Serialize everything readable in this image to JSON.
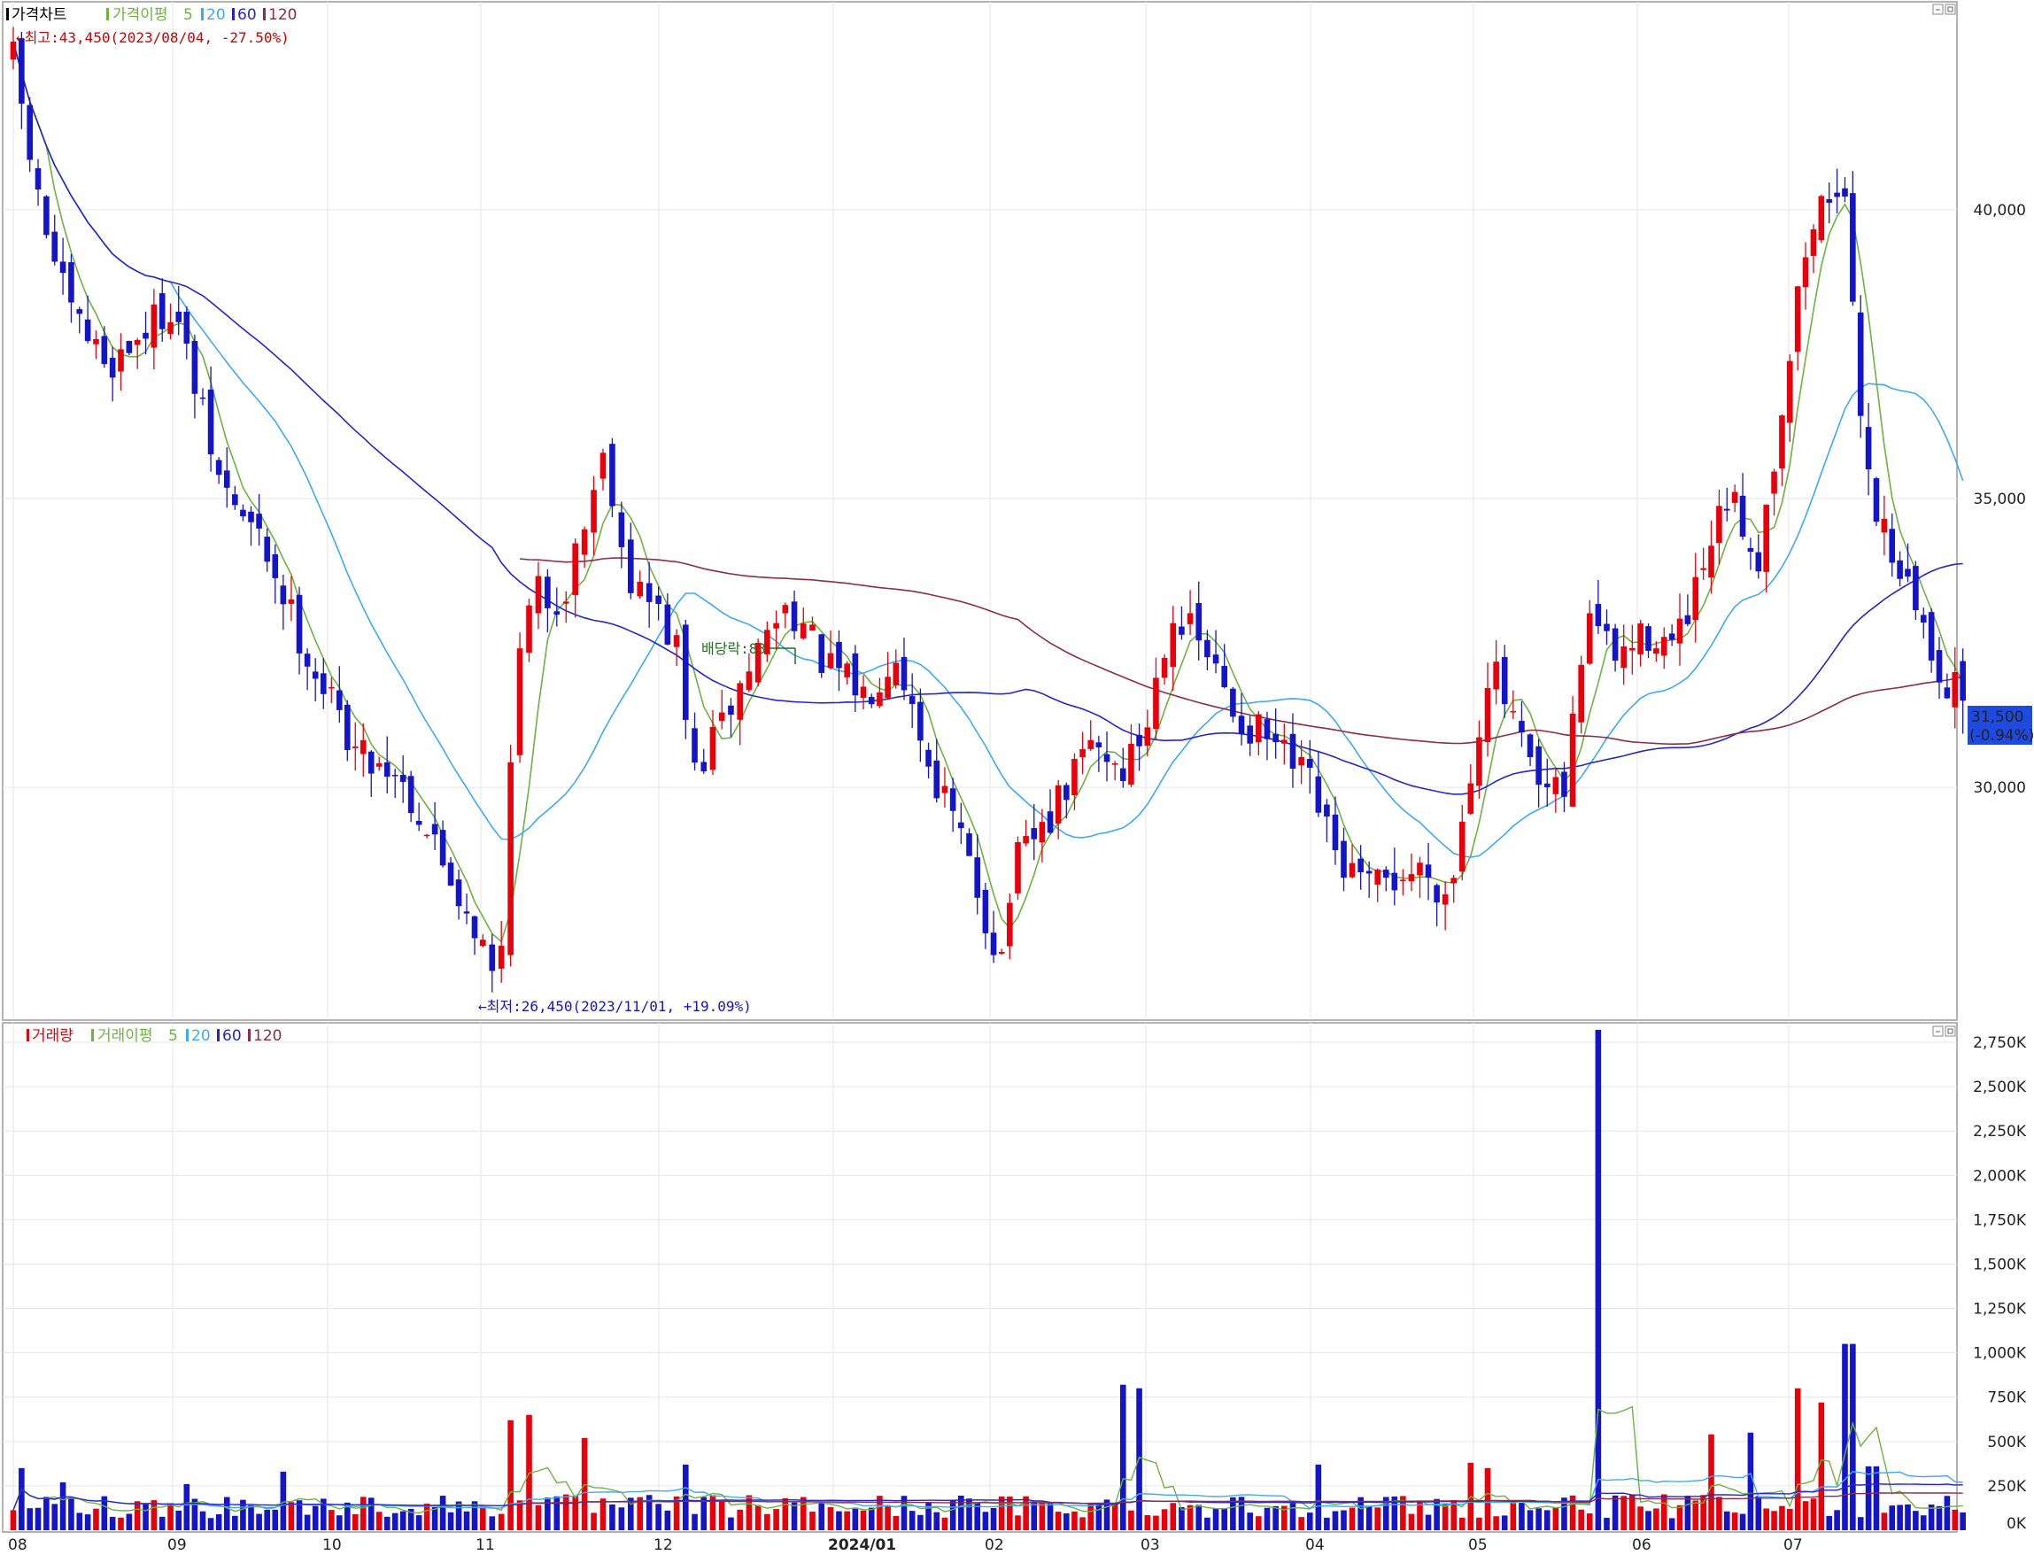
{
  "colors": {
    "up": "#e8000b",
    "down": "#1414c8",
    "ma5": "#6db33f",
    "ma20": "#3fa9f5",
    "ma60": "#2626c8",
    "ma120": "#8b2d45",
    "grid": "#e6e6e6",
    "frame": "#9a9a9a",
    "last_price_bg": "#1f4ae0",
    "annot_high": "#d00000",
    "annot_low": "#1414c8",
    "dividend": "#207020"
  },
  "price_legend": {
    "title": "가격차트",
    "avg_label": "가격이평",
    "periods": [
      "5",
      "20",
      "60",
      "120"
    ]
  },
  "volume_legend": {
    "title": "거래량",
    "avg_label": "거래이평",
    "periods": [
      "5",
      "20",
      "60",
      "120"
    ]
  },
  "annotations": {
    "high": "←최고:43,450(2023/08/04, -27.50%)",
    "low": "←최저:26,450(2023/11/01, +19.09%)",
    "dividend": "배당락:83"
  },
  "last_price": {
    "price": "31,500",
    "change": "(-0.94%)"
  },
  "x_axis_labels": [
    "08",
    "09",
    "10",
    "11",
    "12",
    "2024/01",
    "02",
    "03",
    "04",
    "05",
    "06",
    "07"
  ],
  "price_y_ticks": [
    "40,000",
    "35,000",
    "30,000"
  ],
  "volume_y_ticks": [
    "2,750K",
    "2,500K",
    "2,250K",
    "2,000K",
    "1,750K",
    "1,500K",
    "1,250K",
    "1,000K",
    "750K",
    "500K",
    "250K",
    "0K"
  ],
  "chart_data": [
    {
      "type": "candlestick",
      "title": "가격차트",
      "period": "2023/08 – 2024/07 (daily)",
      "x_categories": [
        "08",
        "09",
        "10",
        "11",
        "12",
        "2024/01",
        "02",
        "03",
        "04",
        "05",
        "06",
        "07"
      ],
      "ylim": [
        26000,
        43600
      ],
      "y_ticks": [
        30000,
        35000,
        40000
      ],
      "grid": true,
      "high": {
        "value": 43450,
        "date": "2023/08/04",
        "pct": -27.5
      },
      "low": {
        "value": 26450,
        "date": "2023/11/01",
        "pct": 19.09
      },
      "last_close": 31500,
      "last_change_pct": -0.94,
      "close_waypoints_by_month_fraction": [
        [
          0.0,
          42600
        ],
        [
          0.15,
          40200
        ],
        [
          0.35,
          38200
        ],
        [
          0.6,
          37300
        ],
        [
          1.0,
          38400
        ],
        [
          1.3,
          35300
        ],
        [
          1.6,
          34100
        ],
        [
          1.9,
          32100
        ],
        [
          2.2,
          30600
        ],
        [
          2.45,
          30300
        ],
        [
          2.7,
          29000
        ],
        [
          3.0,
          27400
        ],
        [
          3.05,
          26600
        ],
        [
          3.12,
          27300
        ],
        [
          3.18,
          31700
        ],
        [
          3.3,
          33400
        ],
        [
          3.45,
          33200
        ],
        [
          3.7,
          35900
        ],
        [
          3.82,
          33700
        ],
        [
          4.0,
          33000
        ],
        [
          4.1,
          32400
        ],
        [
          4.2,
          30200
        ],
        [
          4.35,
          31000
        ],
        [
          4.6,
          32600
        ],
        [
          4.75,
          33200
        ],
        [
          4.95,
          32100
        ],
        [
          5.2,
          31600
        ],
        [
          5.4,
          32400
        ],
        [
          5.6,
          30500
        ],
        [
          5.8,
          29200
        ],
        [
          6.0,
          27500
        ],
        [
          6.07,
          27000
        ],
        [
          6.15,
          28600
        ],
        [
          6.4,
          29500
        ],
        [
          6.65,
          30800
        ],
        [
          6.85,
          30300
        ],
        [
          7.0,
          31000
        ],
        [
          7.15,
          33100
        ],
        [
          7.35,
          32400
        ],
        [
          7.55,
          31200
        ],
        [
          7.75,
          30800
        ],
        [
          8.0,
          30000
        ],
        [
          8.15,
          28800
        ],
        [
          8.35,
          28200
        ],
        [
          8.5,
          28400
        ],
        [
          8.7,
          28600
        ],
        [
          8.85,
          28100
        ],
        [
          9.0,
          30600
        ],
        [
          9.1,
          32200
        ],
        [
          9.25,
          31000
        ],
        [
          9.4,
          29900
        ],
        [
          9.55,
          29800
        ],
        [
          9.7,
          33200
        ],
        [
          9.85,
          32200
        ],
        [
          10.1,
          32700
        ],
        [
          10.25,
          32400
        ],
        [
          10.4,
          33400
        ],
        [
          10.6,
          35000
        ],
        [
          10.8,
          34000
        ],
        [
          10.95,
          36500
        ],
        [
          11.1,
          39200
        ],
        [
          11.25,
          40300
        ],
        [
          11.35,
          40600
        ],
        [
          11.45,
          37200
        ],
        [
          11.55,
          35000
        ],
        [
          11.75,
          33700
        ],
        [
          11.95,
          32300
        ],
        [
          12.05,
          31800
        ],
        [
          12.15,
          31500
        ]
      ],
      "series": [
        {
          "name": "5",
          "kind": "moving_average"
        },
        {
          "name": "20",
          "kind": "moving_average"
        },
        {
          "name": "60",
          "kind": "moving_average"
        },
        {
          "name": "120",
          "kind": "moving_average"
        }
      ]
    },
    {
      "type": "bar",
      "title": "거래량",
      "ylim": [
        0,
        2850
      ],
      "y_unit": "K",
      "y_ticks": [
        0,
        250,
        500,
        750,
        1000,
        1250,
        1500,
        1750,
        2000,
        2250,
        2500,
        2750
      ],
      "grid": true,
      "typical_volume_k": 150,
      "spikes_by_month_fraction": [
        [
          0.05,
          350
        ],
        [
          0.3,
          270
        ],
        [
          1.1,
          260
        ],
        [
          1.7,
          330
        ],
        [
          3.18,
          620
        ],
        [
          3.25,
          650
        ],
        [
          3.6,
          520
        ],
        [
          4.15,
          370
        ],
        [
          6.85,
          820
        ],
        [
          6.95,
          800
        ],
        [
          8.05,
          370
        ],
        [
          9.0,
          380
        ],
        [
          9.1,
          350
        ],
        [
          9.75,
          2820
        ],
        [
          10.5,
          540
        ],
        [
          10.75,
          550
        ],
        [
          11.05,
          800
        ],
        [
          11.2,
          720
        ],
        [
          11.4,
          1050
        ],
        [
          11.55,
          360
        ]
      ],
      "series": [
        {
          "name": "5",
          "kind": "moving_average"
        },
        {
          "name": "20",
          "kind": "moving_average"
        },
        {
          "name": "60",
          "kind": "moving_average"
        },
        {
          "name": "120",
          "kind": "moving_average"
        }
      ]
    }
  ]
}
